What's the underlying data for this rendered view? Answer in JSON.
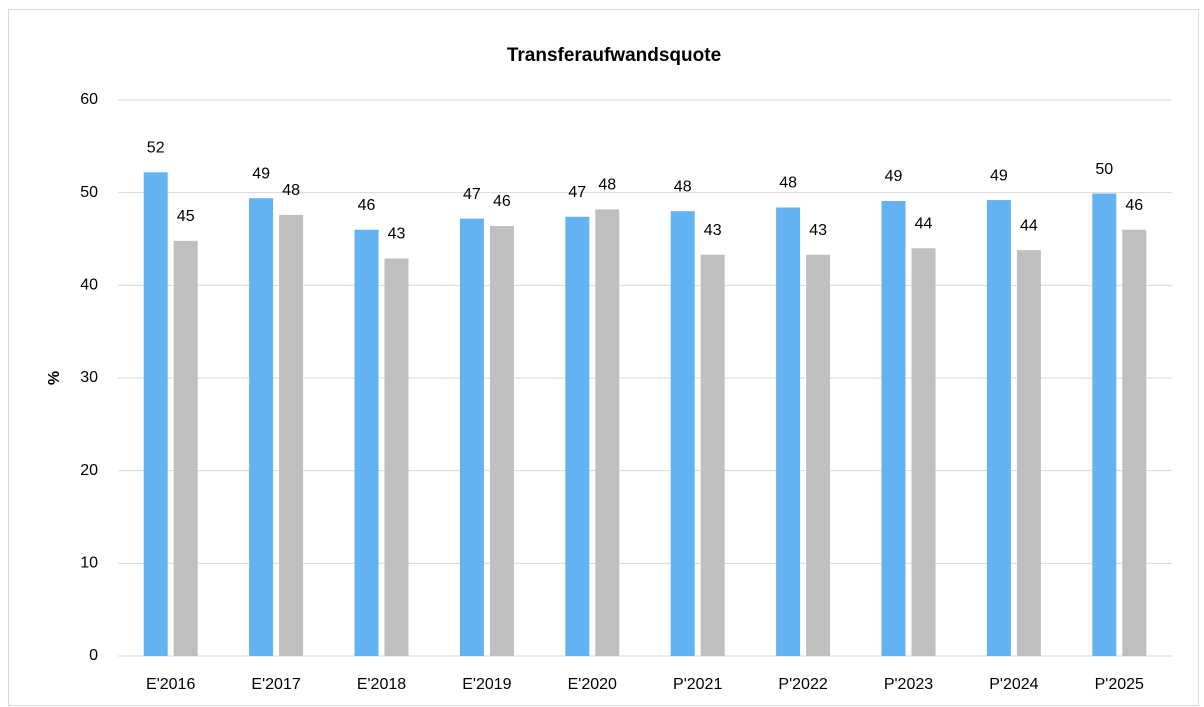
{
  "chart_data": {
    "type": "bar",
    "title": "Transferaufwandsquote",
    "y_label": "%",
    "categories": [
      "E'2016",
      "E'2017",
      "E'2018",
      "E'2019",
      "E'2020",
      "P'2021",
      "P'2022",
      "P'2023",
      "P'2024",
      "P'2025"
    ],
    "series": [
      {
        "color": "#63b2f2",
        "values": [
          52.2,
          49.4,
          46.0,
          47.2,
          47.4,
          48.0,
          48.4,
          49.1,
          49.2,
          49.9
        ],
        "value_labels": [
          "52",
          "49",
          "46",
          "47",
          "47",
          "48",
          "48",
          "49",
          "49",
          "50"
        ]
      },
      {
        "color": "#bfbfbf",
        "values": [
          44.8,
          47.6,
          42.9,
          46.4,
          48.2,
          43.3,
          43.3,
          44.0,
          43.8,
          46.0
        ],
        "value_labels": [
          "45",
          "48",
          "43",
          "46",
          "48",
          "43",
          "43",
          "44",
          "44",
          "46"
        ]
      }
    ],
    "ylim": [
      0,
      60
    ],
    "yticks": [
      0,
      10,
      20,
      30,
      40,
      50,
      60
    ],
    "grid": true
  }
}
